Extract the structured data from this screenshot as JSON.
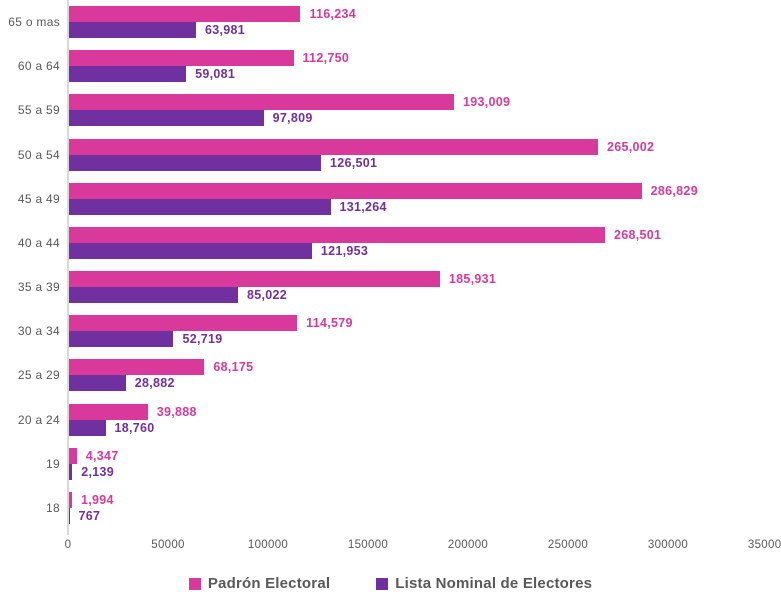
{
  "chart_data": {
    "type": "bar",
    "orientation": "horizontal",
    "title": "",
    "xlabel": "",
    "ylabel": "",
    "categories": [
      "65 o mas",
      "60 a 64",
      "55 a 59",
      "50 a 54",
      "45 a 49",
      "40 a 44",
      "35 a 39",
      "30 a 34",
      "25 a 29",
      "20 a 24",
      "19",
      "18"
    ],
    "series": [
      {
        "name": "Padrón Electoral",
        "color": "#d8399a",
        "values": [
          116234,
          112750,
          193009,
          265002,
          286829,
          268501,
          185931,
          114579,
          68175,
          39888,
          4347,
          1994
        ]
      },
      {
        "name": "Lista Nominal de Electores",
        "color": "#7030a0",
        "values": [
          63981,
          59081,
          97809,
          126501,
          131264,
          121953,
          85022,
          52719,
          28882,
          18760,
          2139,
          767
        ]
      }
    ],
    "xlim": [
      0,
      350000
    ],
    "x_ticks": [
      0,
      50000,
      100000,
      150000,
      200000,
      250000,
      300000,
      350000
    ],
    "grid": false,
    "value_labels": true,
    "legend_position": "bottom"
  },
  "colors": {
    "series_1": "#d8399a",
    "series_2": "#7030a0",
    "axis_line": "#d9d9d9",
    "text_gray": "#595959",
    "background": "#ffffff"
  }
}
